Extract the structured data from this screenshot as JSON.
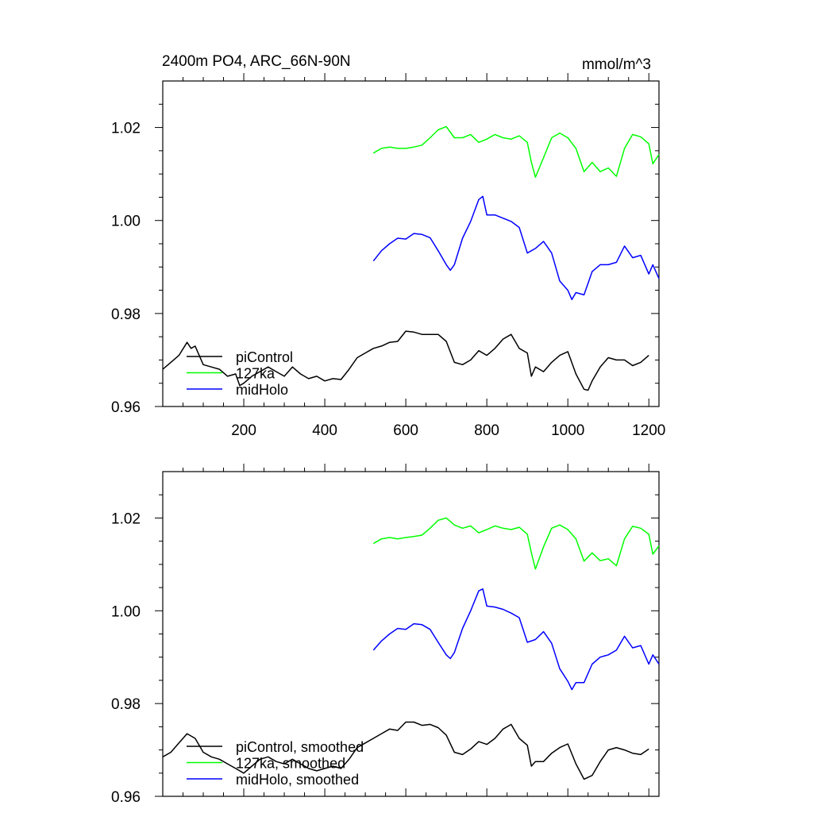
{
  "figure": {
    "title_left": "2400m PO4, ARC_66N-90N",
    "title_right": "mmol/m^3"
  },
  "chart_data": [
    {
      "type": "line",
      "panel": "top",
      "xlim": [
        0,
        1225
      ],
      "ylim": [
        0.96,
        1.03
      ],
      "x_ticks": [
        200,
        400,
        600,
        800,
        1000,
        1200
      ],
      "x_tick_labels": [
        "200",
        "400",
        "600",
        "800",
        "1000",
        "1200"
      ],
      "y_ticks": [
        0.96,
        0.98,
        1.0,
        1.02
      ],
      "y_tick_labels": [
        "0.96",
        "0.98",
        "1.00",
        "1.02"
      ],
      "grid": false,
      "legend_position": "bottom-left",
      "series": [
        {
          "name": "piControl",
          "color": "#000000",
          "x": [
            0,
            20,
            40,
            60,
            70,
            80,
            100,
            120,
            140,
            160,
            180,
            190,
            200,
            220,
            240,
            260,
            280,
            300,
            320,
            340,
            360,
            380,
            400,
            420,
            440,
            460,
            480,
            500,
            520,
            540,
            560,
            580,
            600,
            620,
            640,
            660,
            680,
            700,
            720,
            740,
            760,
            780,
            800,
            820,
            840,
            860,
            880,
            900,
            910,
            920,
            940,
            960,
            980,
            1000,
            1020,
            1040,
            1050,
            1060,
            1080,
            1100,
            1120,
            1140,
            1160,
            1180,
            1200
          ],
          "y": [
            0.968,
            0.9695,
            0.971,
            0.9738,
            0.9725,
            0.973,
            0.969,
            0.9685,
            0.968,
            0.9665,
            0.967,
            0.9645,
            0.965,
            0.9665,
            0.9675,
            0.9685,
            0.9675,
            0.9665,
            0.9685,
            0.967,
            0.966,
            0.9665,
            0.9655,
            0.966,
            0.9658,
            0.968,
            0.9705,
            0.9715,
            0.9725,
            0.973,
            0.9738,
            0.974,
            0.9762,
            0.976,
            0.9755,
            0.9755,
            0.9755,
            0.974,
            0.9695,
            0.969,
            0.97,
            0.972,
            0.971,
            0.9725,
            0.9745,
            0.9755,
            0.9725,
            0.9715,
            0.9665,
            0.9685,
            0.9675,
            0.9695,
            0.971,
            0.9718,
            0.967,
            0.9637,
            0.9635,
            0.9655,
            0.9685,
            0.9705,
            0.97,
            0.97,
            0.9688,
            0.9695,
            0.971
          ]
        },
        {
          "name": "127ka",
          "color": "#00ff00",
          "x": [
            520,
            540,
            560,
            580,
            600,
            620,
            640,
            660,
            680,
            700,
            720,
            740,
            760,
            780,
            800,
            820,
            840,
            860,
            880,
            900,
            910,
            920,
            940,
            960,
            980,
            1000,
            1020,
            1040,
            1060,
            1080,
            1100,
            1120,
            1140,
            1160,
            1180,
            1200,
            1210,
            1225
          ],
          "y": [
            1.0145,
            1.0155,
            1.0158,
            1.0155,
            1.0155,
            1.0158,
            1.0162,
            1.0178,
            1.0195,
            1.0202,
            1.0178,
            1.0178,
            1.0185,
            1.0168,
            1.0175,
            1.0185,
            1.0178,
            1.0175,
            1.0182,
            1.0168,
            1.0125,
            1.0093,
            1.0135,
            1.0178,
            1.0188,
            1.0178,
            1.0155,
            1.0105,
            1.0125,
            1.0105,
            1.0113,
            1.0095,
            1.0155,
            1.0185,
            1.018,
            1.0165,
            1.0122,
            1.0142
          ]
        },
        {
          "name": "midHolo",
          "color": "#0000ff",
          "x": [
            520,
            540,
            560,
            580,
            600,
            620,
            640,
            660,
            680,
            700,
            710,
            720,
            740,
            760,
            780,
            790,
            800,
            820,
            840,
            860,
            880,
            900,
            920,
            940,
            960,
            980,
            1000,
            1010,
            1020,
            1040,
            1060,
            1080,
            1100,
            1120,
            1140,
            1160,
            1180,
            1200,
            1210,
            1225
          ],
          "y": [
            0.9913,
            0.9935,
            0.995,
            0.9962,
            0.996,
            0.9972,
            0.997,
            0.9963,
            0.9935,
            0.9905,
            0.9893,
            0.9905,
            0.9962,
            0.9998,
            1.0045,
            1.0052,
            1.0012,
            1.0012,
            1.0005,
            0.9998,
            0.9985,
            0.993,
            0.994,
            0.9955,
            0.993,
            0.987,
            0.985,
            0.983,
            0.9845,
            0.984,
            0.989,
            0.9905,
            0.9905,
            0.991,
            0.9945,
            0.992,
            0.9925,
            0.9885,
            0.9905,
            0.9875
          ]
        }
      ],
      "legend": [
        "piControl",
        "127ka",
        "midHolo"
      ]
    },
    {
      "type": "line",
      "panel": "bottom",
      "xlim": [
        0,
        1225
      ],
      "ylim": [
        0.96,
        1.03
      ],
      "x_ticks": [
        200,
        400,
        600,
        800,
        1000,
        1200
      ],
      "y_ticks": [
        0.96,
        0.98,
        1.0,
        1.02
      ],
      "y_tick_labels": [
        "0.96",
        "0.98",
        "1.00",
        "1.02"
      ],
      "grid": false,
      "legend_position": "bottom-left",
      "series": [
        {
          "name": "piControl, smoothed",
          "color": "#000000",
          "x": [
            0,
            20,
            40,
            60,
            80,
            100,
            120,
            140,
            160,
            180,
            200,
            220,
            240,
            260,
            280,
            300,
            320,
            340,
            360,
            380,
            400,
            420,
            440,
            460,
            480,
            500,
            520,
            540,
            560,
            580,
            600,
            620,
            640,
            660,
            680,
            700,
            720,
            740,
            760,
            780,
            800,
            820,
            840,
            860,
            880,
            900,
            910,
            920,
            940,
            960,
            980,
            1000,
            1020,
            1040,
            1060,
            1080,
            1100,
            1120,
            1140,
            1160,
            1180,
            1200
          ],
          "y": [
            0.9685,
            0.9695,
            0.9715,
            0.9735,
            0.9725,
            0.9695,
            0.9685,
            0.968,
            0.967,
            0.966,
            0.965,
            0.9665,
            0.968,
            0.9685,
            0.9675,
            0.967,
            0.968,
            0.967,
            0.966,
            0.9655,
            0.966,
            0.9665,
            0.966,
            0.968,
            0.9705,
            0.9715,
            0.9725,
            0.9735,
            0.9745,
            0.9742,
            0.976,
            0.976,
            0.9753,
            0.9755,
            0.9748,
            0.9732,
            0.9695,
            0.969,
            0.9702,
            0.9718,
            0.9712,
            0.9725,
            0.9745,
            0.9755,
            0.9725,
            0.971,
            0.9665,
            0.9675,
            0.9675,
            0.9693,
            0.9705,
            0.9713,
            0.967,
            0.9637,
            0.9645,
            0.9675,
            0.97,
            0.9705,
            0.97,
            0.9693,
            0.969,
            0.9702
          ]
        },
        {
          "name": "127ka, smoothed",
          "color": "#00ff00",
          "x": [
            520,
            540,
            560,
            580,
            600,
            620,
            640,
            660,
            680,
            700,
            720,
            740,
            760,
            780,
            800,
            820,
            840,
            860,
            880,
            900,
            910,
            920,
            940,
            960,
            980,
            1000,
            1020,
            1040,
            1060,
            1080,
            1100,
            1120,
            1140,
            1160,
            1180,
            1200,
            1210,
            1225
          ],
          "y": [
            1.0145,
            1.0155,
            1.0158,
            1.0155,
            1.0158,
            1.016,
            1.0163,
            1.0178,
            1.0195,
            1.02,
            1.0185,
            1.0178,
            1.0183,
            1.0168,
            1.0175,
            1.0183,
            1.0178,
            1.0175,
            1.018,
            1.0165,
            1.0125,
            1.009,
            1.0138,
            1.0178,
            1.0185,
            1.0175,
            1.0155,
            1.0107,
            1.0125,
            1.0108,
            1.0112,
            1.0097,
            1.0155,
            1.0182,
            1.0178,
            1.0165,
            1.0122,
            1.014
          ]
        },
        {
          "name": "midHolo, smoothed",
          "color": "#0000ff",
          "x": [
            520,
            540,
            560,
            580,
            600,
            620,
            640,
            660,
            680,
            700,
            710,
            720,
            740,
            760,
            780,
            790,
            800,
            820,
            840,
            860,
            880,
            900,
            920,
            940,
            960,
            980,
            1000,
            1010,
            1020,
            1040,
            1060,
            1080,
            1100,
            1120,
            1140,
            1160,
            1180,
            1200,
            1210,
            1225
          ],
          "y": [
            0.9915,
            0.9935,
            0.995,
            0.9962,
            0.996,
            0.9972,
            0.997,
            0.996,
            0.9932,
            0.9905,
            0.9897,
            0.991,
            0.9962,
            1.0,
            1.0043,
            1.0047,
            1.001,
            1.0008,
            1.0003,
            0.9995,
            0.9985,
            0.9932,
            0.9938,
            0.9955,
            0.993,
            0.9875,
            0.9848,
            0.983,
            0.9845,
            0.9845,
            0.9885,
            0.99,
            0.9905,
            0.9915,
            0.9945,
            0.992,
            0.9925,
            0.9885,
            0.9905,
            0.9885
          ]
        }
      ],
      "legend": [
        "piControl, smoothed",
        "127ka, smoothed",
        "midHolo, smoothed"
      ]
    }
  ]
}
